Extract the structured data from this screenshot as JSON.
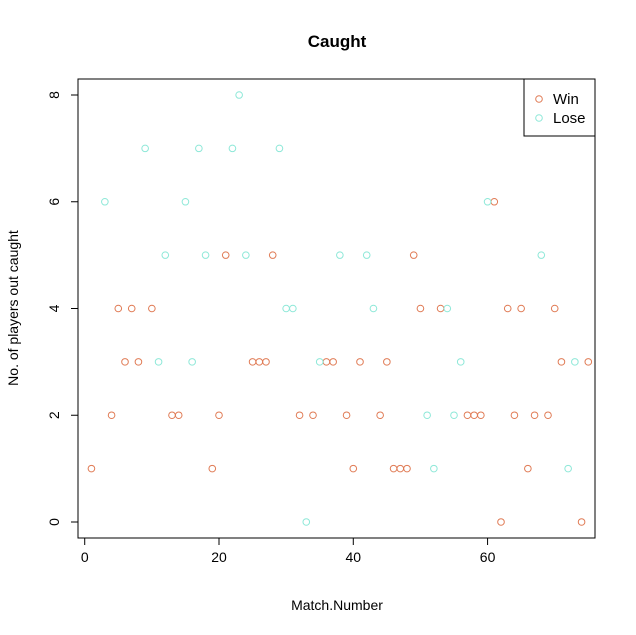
{
  "chart_data": {
    "type": "scatter",
    "title": "Caught",
    "xlabel": "Match.Number",
    "ylabel": "No. of players out caught",
    "xlim": [
      -1,
      76
    ],
    "ylim": [
      -0.3,
      8.3
    ],
    "xticks": [
      0,
      20,
      40,
      60
    ],
    "yticks": [
      0,
      2,
      4,
      6,
      8
    ],
    "legend_position": "top-right",
    "grid": false,
    "series": [
      {
        "name": "Win",
        "color": "#e07b55",
        "points": [
          [
            1,
            1
          ],
          [
            4,
            2
          ],
          [
            5,
            4
          ],
          [
            6,
            3
          ],
          [
            7,
            4
          ],
          [
            8,
            3
          ],
          [
            10,
            4
          ],
          [
            13,
            2
          ],
          [
            14,
            2
          ],
          [
            19,
            1
          ],
          [
            20,
            2
          ],
          [
            21,
            5
          ],
          [
            25,
            3
          ],
          [
            26,
            3
          ],
          [
            27,
            3
          ],
          [
            28,
            5
          ],
          [
            32,
            2
          ],
          [
            34,
            2
          ],
          [
            36,
            3
          ],
          [
            37,
            3
          ],
          [
            39,
            2
          ],
          [
            40,
            1
          ],
          [
            41,
            3
          ],
          [
            44,
            2
          ],
          [
            45,
            3
          ],
          [
            46,
            1
          ],
          [
            47,
            1
          ],
          [
            48,
            1
          ],
          [
            49,
            5
          ],
          [
            50,
            4
          ],
          [
            53,
            4
          ],
          [
            57,
            2
          ],
          [
            58,
            2
          ],
          [
            59,
            2
          ],
          [
            61,
            6
          ],
          [
            62,
            0
          ],
          [
            63,
            4
          ],
          [
            64,
            2
          ],
          [
            65,
            4
          ],
          [
            66,
            1
          ],
          [
            67,
            2
          ],
          [
            69,
            2
          ],
          [
            70,
            4
          ],
          [
            71,
            3
          ],
          [
            74,
            0
          ],
          [
            75,
            3
          ]
        ]
      },
      {
        "name": "Lose",
        "color": "#8ee8d8",
        "points": [
          [
            3,
            6
          ],
          [
            9,
            7
          ],
          [
            11,
            3
          ],
          [
            12,
            5
          ],
          [
            15,
            6
          ],
          [
            16,
            3
          ],
          [
            17,
            7
          ],
          [
            18,
            5
          ],
          [
            22,
            7
          ],
          [
            23,
            8
          ],
          [
            24,
            5
          ],
          [
            29,
            7
          ],
          [
            30,
            4
          ],
          [
            31,
            4
          ],
          [
            33,
            0
          ],
          [
            35,
            3
          ],
          [
            38,
            5
          ],
          [
            42,
            5
          ],
          [
            43,
            4
          ],
          [
            51,
            2
          ],
          [
            52,
            1
          ],
          [
            54,
            4
          ],
          [
            55,
            2
          ],
          [
            56,
            3
          ],
          [
            60,
            6
          ],
          [
            68,
            5
          ],
          [
            72,
            1
          ],
          [
            73,
            3
          ]
        ]
      }
    ]
  }
}
